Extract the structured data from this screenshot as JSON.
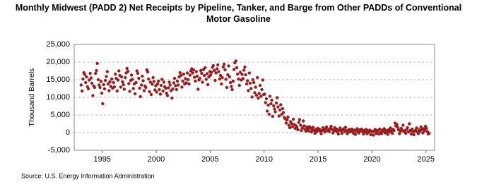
{
  "chart_data": {
    "type": "scatter",
    "title": "Monthly Midwest (PADD 2) Net Receipts by Pipeline, Tanker, and Barge from Other PADDs of Conventional Motor Gasoline",
    "y_label": "Thousand Barrels",
    "source": "Source: U.S. Energy Information Administration",
    "color": "#9b1c1c",
    "grid": true,
    "xlim": [
      1992.4,
      2025.8
    ],
    "xticks": [
      1995,
      2000,
      2005,
      2010,
      2015,
      2020,
      2025
    ],
    "ylim": [
      -5000,
      25000
    ],
    "yticks": [
      {
        "value": -5000,
        "label": "-5,000"
      },
      0,
      {
        "value": 5000,
        "label": "5,000"
      },
      {
        "value": 10000,
        "label": "10,000"
      },
      {
        "value": 15000,
        "label": "15,000"
      },
      {
        "value": 20000,
        "label": "20,000"
      },
      {
        "value": 25000,
        "label": "25,000"
      }
    ],
    "x": [
      1993.04,
      1993.13,
      1993.21,
      1993.29,
      1993.38,
      1993.46,
      1993.54,
      1993.63,
      1993.71,
      1993.79,
      1993.88,
      1993.96,
      1994.04,
      1994.13,
      1994.21,
      1994.29,
      1994.38,
      1994.46,
      1994.54,
      1994.63,
      1994.71,
      1994.79,
      1994.88,
      1994.96,
      1995.04,
      1995.13,
      1995.21,
      1995.29,
      1995.38,
      1995.46,
      1995.54,
      1995.63,
      1995.71,
      1995.79,
      1995.88,
      1995.96,
      1996.04,
      1996.13,
      1996.21,
      1996.29,
      1996.38,
      1996.46,
      1996.54,
      1996.63,
      1996.71,
      1996.79,
      1996.88,
      1996.96,
      1997.04,
      1997.13,
      1997.21,
      1997.29,
      1997.38,
      1997.46,
      1997.54,
      1997.63,
      1997.71,
      1997.79,
      1997.88,
      1997.96,
      1998.04,
      1998.13,
      1998.21,
      1998.29,
      1998.38,
      1998.46,
      1998.54,
      1998.63,
      1998.71,
      1998.79,
      1998.88,
      1998.96,
      1999.04,
      1999.13,
      1999.21,
      1999.29,
      1999.38,
      1999.46,
      1999.54,
      1999.63,
      1999.71,
      1999.79,
      1999.88,
      1999.96,
      2000.04,
      2000.13,
      2000.21,
      2000.29,
      2000.38,
      2000.46,
      2000.54,
      2000.63,
      2000.71,
      2000.79,
      2000.88,
      2000.96,
      2001.04,
      2001.13,
      2001.21,
      2001.29,
      2001.38,
      2001.46,
      2001.54,
      2001.63,
      2001.71,
      2001.79,
      2001.88,
      2001.96,
      2002.04,
      2002.13,
      2002.21,
      2002.29,
      2002.38,
      2002.46,
      2002.54,
      2002.63,
      2002.71,
      2002.79,
      2002.88,
      2002.96,
      2003.04,
      2003.13,
      2003.21,
      2003.29,
      2003.38,
      2003.46,
      2003.54,
      2003.63,
      2003.71,
      2003.79,
      2003.88,
      2003.96,
      2004.04,
      2004.13,
      2004.21,
      2004.29,
      2004.38,
      2004.46,
      2004.54,
      2004.63,
      2004.71,
      2004.79,
      2004.88,
      2004.96,
      2005.04,
      2005.13,
      2005.21,
      2005.29,
      2005.38,
      2005.46,
      2005.54,
      2005.63,
      2005.71,
      2005.79,
      2005.88,
      2005.96,
      2006.04,
      2006.13,
      2006.21,
      2006.29,
      2006.38,
      2006.46,
      2006.54,
      2006.63,
      2006.71,
      2006.79,
      2006.88,
      2006.96,
      2007.04,
      2007.13,
      2007.21,
      2007.29,
      2007.38,
      2007.46,
      2007.54,
      2007.63,
      2007.71,
      2007.79,
      2007.88,
      2007.96,
      2008.04,
      2008.13,
      2008.21,
      2008.29,
      2008.38,
      2008.46,
      2008.54,
      2008.63,
      2008.71,
      2008.79,
      2008.88,
      2008.96,
      2009.04,
      2009.13,
      2009.21,
      2009.29,
      2009.38,
      2009.46,
      2009.54,
      2009.63,
      2009.71,
      2009.79,
      2009.88,
      2009.96,
      2010.04,
      2010.13,
      2010.21,
      2010.29,
      2010.38,
      2010.46,
      2010.54,
      2010.63,
      2010.71,
      2010.79,
      2010.88,
      2010.96,
      2011.04,
      2011.13,
      2011.21,
      2011.29,
      2011.38,
      2011.46,
      2011.54,
      2011.63,
      2011.71,
      2011.79,
      2011.88,
      2011.96,
      2012.04,
      2012.13,
      2012.21,
      2012.29,
      2012.38,
      2012.46,
      2012.54,
      2012.63,
      2012.71,
      2012.79,
      2012.88,
      2012.96,
      2013.04,
      2013.13,
      2013.21,
      2013.29,
      2013.38,
      2013.46,
      2013.54,
      2013.63,
      2013.71,
      2013.79,
      2013.88,
      2013.96,
      2014.04,
      2014.13,
      2014.21,
      2014.29,
      2014.38,
      2014.46,
      2014.54,
      2014.63,
      2014.71,
      2014.79,
      2014.88,
      2014.96,
      2015.04,
      2015.13,
      2015.21,
      2015.29,
      2015.38,
      2015.46,
      2015.54,
      2015.63,
      2015.71,
      2015.79,
      2015.88,
      2015.96,
      2016.04,
      2016.13,
      2016.21,
      2016.29,
      2016.38,
      2016.46,
      2016.54,
      2016.63,
      2016.71,
      2016.79,
      2016.88,
      2016.96,
      2017.04,
      2017.13,
      2017.21,
      2017.29,
      2017.38,
      2017.46,
      2017.54,
      2017.63,
      2017.71,
      2017.79,
      2017.88,
      2017.96,
      2018.04,
      2018.13,
      2018.21,
      2018.29,
      2018.38,
      2018.46,
      2018.54,
      2018.63,
      2018.71,
      2018.79,
      2018.88,
      2018.96,
      2019.04,
      2019.13,
      2019.21,
      2019.29,
      2019.38,
      2019.46,
      2019.54,
      2019.63,
      2019.71,
      2019.79,
      2019.88,
      2019.96,
      2020.04,
      2020.13,
      2020.21,
      2020.29,
      2020.38,
      2020.46,
      2020.54,
      2020.63,
      2020.71,
      2020.79,
      2020.88,
      2020.96,
      2021.04,
      2021.13,
      2021.21,
      2021.29,
      2021.38,
      2021.46,
      2021.54,
      2021.63,
      2021.71,
      2021.79,
      2021.88,
      2021.96,
      2022.04,
      2022.13,
      2022.21,
      2022.29,
      2022.38,
      2022.46,
      2022.54,
      2022.63,
      2022.71,
      2022.79,
      2022.88,
      2022.96,
      2023.04,
      2023.13,
      2023.21,
      2023.29,
      2023.38,
      2023.46,
      2023.54,
      2023.63,
      2023.71,
      2023.79,
      2023.88,
      2023.96,
      2024.04,
      2024.13,
      2024.21,
      2024.29,
      2024.38,
      2024.46,
      2024.54,
      2024.63,
      2024.71,
      2024.79,
      2024.88,
      2024.96,
      2025.04,
      2025.13,
      2025.21,
      2025.29
    ],
    "values": [
      13500,
      11800,
      15200,
      17000,
      16500,
      14200,
      15800,
      13000,
      12400,
      14900,
      16800,
      15500,
      14000,
      10500,
      13200,
      12800,
      16800,
      17600,
      19600,
      15000,
      13500,
      12800,
      14500,
      11200,
      8200,
      13600,
      12400,
      14800,
      15900,
      17300,
      13800,
      11900,
      14400,
      13100,
      15200,
      12600,
      14200,
      13000,
      16600,
      15400,
      11800,
      14900,
      17500,
      16200,
      12900,
      15800,
      14400,
      13600,
      12300,
      15600,
      16900,
      18200,
      17400,
      13900,
      11700,
      14800,
      16300,
      15100,
      12500,
      13800,
      11000,
      14200,
      17500,
      16800,
      15400,
      12600,
      10200,
      13500,
      16000,
      14700,
      11900,
      13200,
      12800,
      17800,
      17200,
      15200,
      11600,
      14300,
      10800,
      13700,
      15600,
      14500,
      12100,
      13300,
      11500,
      13800,
      14600,
      12200,
      10900,
      13400,
      15100,
      11800,
      14300,
      13000,
      12600,
      11200,
      10500,
      12700,
      14300,
      13500,
      11900,
      9800,
      12400,
      14100,
      15400,
      13300,
      12200,
      14600,
      13500,
      15800,
      17000,
      16200,
      12900,
      14600,
      16600,
      13800,
      15300,
      14100,
      16900,
      15000,
      13800,
      16300,
      17500,
      18100,
      16900,
      17800,
      15700,
      14600,
      17300,
      16000,
      12300,
      14900,
      15400,
      17600,
      16800,
      14300,
      17900,
      16200,
      18400,
      15100,
      16700,
      13600,
      15800,
      17300,
      16300,
      17100,
      18500,
      19000,
      17600,
      14800,
      16900,
      18100,
      19200,
      17300,
      15200,
      16200,
      13800,
      15600,
      18600,
      19400,
      17800,
      15100,
      12800,
      16400,
      18900,
      15800,
      14200,
      13100,
      12200,
      14600,
      17900,
      19800,
      20300,
      18400,
      16600,
      15200,
      13400,
      17100,
      14900,
      16500,
      15300,
      17700,
      18600,
      16400,
      13800,
      14700,
      11900,
      16900,
      14000,
      12500,
      10100,
      15000,
      14200,
      11300,
      12900,
      10600,
      15600,
      9800,
      11100,
      13400,
      10300,
      12200,
      14900,
      10800,
      10900,
      8500,
      9600,
      6100,
      7800,
      5200,
      10300,
      8200,
      9200,
      4600,
      7600,
      6700,
      5900,
      8400,
      9900,
      7300,
      4700,
      6400,
      7900,
      5200,
      6800,
      5700,
      4300,
      3900,
      2700,
      3600,
      4400,
      2100,
      1400,
      3100,
      2600,
      1700,
      3800,
      2300,
      1200,
      1900,
      1500,
      800,
      2900,
      3700,
      2100,
      600,
      1300,
      3300,
      1900,
      900,
      400,
      1600,
      1100,
      500,
      1700,
      1300,
      200,
      800,
      1500,
      600,
      -200,
      900,
      300,
      1200,
      700,
      1000,
      400,
      -300,
      600,
      1400,
      900,
      200,
      1100,
      1600,
      500,
      800,
      300,
      1200,
      1800,
      900,
      -100,
      600,
      1400,
      500,
      1000,
      200,
      -400,
      700,
      1300,
      500,
      -200,
      800,
      1100,
      300,
      1500,
      600,
      -300,
      400,
      900,
      200,
      600,
      1000,
      300,
      -200,
      700,
      -500,
      400,
      1100,
      200,
      -100,
      800,
      500,
      1000,
      300,
      -400,
      600,
      200,
      900,
      -300,
      500,
      100,
      700,
      -600,
      400,
      200,
      -700,
      500,
      900,
      -200,
      300,
      600,
      -400,
      1000,
      100,
      -300,
      700,
      400,
      1100,
      -100,
      600,
      300,
      -500,
      800,
      200,
      1300,
      500,
      -200,
      900,
      600,
      2700,
      1900,
      2300,
      1500,
      800,
      -300,
      400,
      1200,
      700,
      2100,
      300,
      500,
      -200,
      900,
      1400,
      200,
      2500,
      600,
      -400,
      1000,
      300,
      -600,
      400,
      700,
      1300,
      200,
      -300,
      800,
      400,
      1600,
      900,
      -100,
      1100,
      500,
      1800,
      1200,
      300,
      -400,
      -200
    ]
  }
}
